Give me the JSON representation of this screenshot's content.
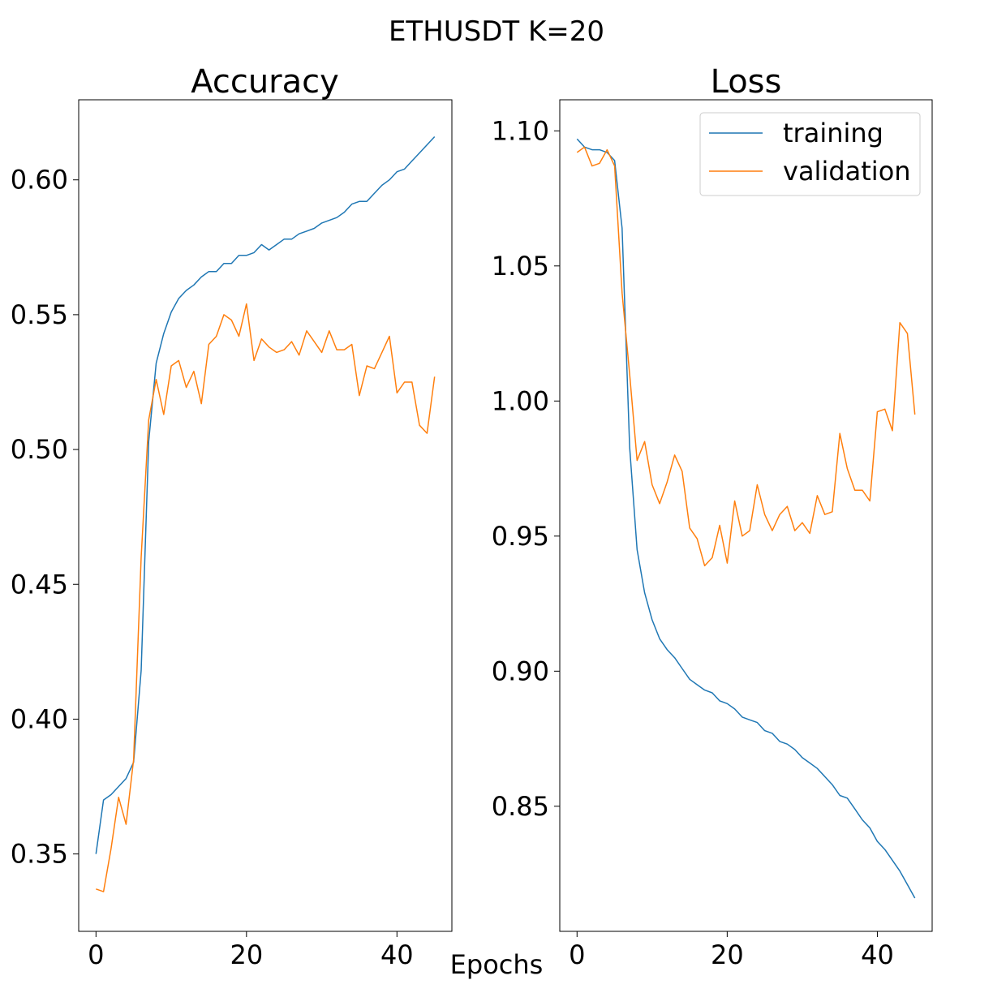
{
  "figure": {
    "suptitle": "ETHUSDT K=20",
    "xlabel": "Epochs"
  },
  "colors": {
    "training": "#1f77b4",
    "validation": "#ff7f0e"
  },
  "chart_data": [
    {
      "type": "line",
      "title": "Accuracy",
      "xlabel": "",
      "ylabel": "",
      "xlim": [
        -2.3,
        47.3
      ],
      "ylim": [
        0.3213,
        0.6297
      ],
      "xticks": [
        0,
        20,
        40
      ],
      "xtick_labels": [
        "0",
        "20",
        "40"
      ],
      "yticks": [
        0.35,
        0.4,
        0.45,
        0.5,
        0.55,
        0.6
      ],
      "ytick_labels": [
        "0.35",
        "0.40",
        "0.45",
        "0.50",
        "0.55",
        "0.60"
      ],
      "grid": false,
      "legend": null,
      "series": [
        {
          "name": "training",
          "x": [
            0,
            1,
            2,
            3,
            4,
            5,
            6,
            7,
            8,
            9,
            10,
            11,
            12,
            13,
            14,
            15,
            16,
            17,
            18,
            19,
            20,
            21,
            22,
            23,
            24,
            25,
            26,
            27,
            28,
            29,
            30,
            31,
            32,
            33,
            34,
            35,
            36,
            37,
            38,
            39,
            40,
            41,
            42,
            43,
            44,
            45
          ],
          "y": [
            0.35,
            0.37,
            0.372,
            0.375,
            0.378,
            0.384,
            0.418,
            0.503,
            0.532,
            0.543,
            0.551,
            0.556,
            0.559,
            0.561,
            0.564,
            0.566,
            0.566,
            0.569,
            0.569,
            0.572,
            0.572,
            0.573,
            0.576,
            0.574,
            0.576,
            0.578,
            0.578,
            0.58,
            0.581,
            0.582,
            0.584,
            0.585,
            0.586,
            0.588,
            0.591,
            0.592,
            0.592,
            0.595,
            0.598,
            0.6,
            0.603,
            0.604,
            0.607,
            0.61,
            0.613,
            0.616
          ]
        },
        {
          "name": "validation",
          "x": [
            0,
            1,
            2,
            3,
            4,
            5,
            6,
            7,
            8,
            9,
            10,
            11,
            12,
            13,
            14,
            15,
            16,
            17,
            18,
            19,
            20,
            21,
            22,
            23,
            24,
            25,
            26,
            27,
            28,
            29,
            30,
            31,
            32,
            33,
            34,
            35,
            36,
            37,
            38,
            39,
            40,
            41,
            42,
            43,
            44,
            45
          ],
          "y": [
            0.337,
            0.336,
            0.352,
            0.371,
            0.361,
            0.385,
            0.46,
            0.511,
            0.526,
            0.513,
            0.531,
            0.533,
            0.523,
            0.529,
            0.517,
            0.539,
            0.542,
            0.55,
            0.548,
            0.542,
            0.554,
            0.533,
            0.541,
            0.538,
            0.536,
            0.537,
            0.54,
            0.535,
            0.544,
            0.54,
            0.536,
            0.544,
            0.537,
            0.537,
            0.539,
            0.52,
            0.531,
            0.53,
            0.536,
            0.542,
            0.521,
            0.525,
            0.525,
            0.509,
            0.506,
            0.527
          ]
        }
      ]
    },
    {
      "type": "line",
      "title": "Loss",
      "xlabel": "",
      "ylabel": "",
      "xlim": [
        -2.3,
        47.3
      ],
      "ylim": [
        0.8037,
        1.1115
      ],
      "xticks": [
        0,
        20,
        40
      ],
      "xtick_labels": [
        "0",
        "20",
        "40"
      ],
      "yticks": [
        0.85,
        0.9,
        0.95,
        1.0,
        1.05,
        1.1
      ],
      "ytick_labels": [
        "0.85",
        "0.90",
        "0.95",
        "1.00",
        "1.05",
        "1.10"
      ],
      "grid": false,
      "legend": "upper right",
      "legend_entries": [
        "training",
        "validation"
      ],
      "series": [
        {
          "name": "training",
          "x": [
            0,
            1,
            2,
            3,
            4,
            5,
            6,
            7,
            8,
            9,
            10,
            11,
            12,
            13,
            14,
            15,
            16,
            17,
            18,
            19,
            20,
            21,
            22,
            23,
            24,
            25,
            26,
            27,
            28,
            29,
            30,
            31,
            32,
            33,
            34,
            35,
            36,
            37,
            38,
            39,
            40,
            41,
            42,
            43,
            44,
            45
          ],
          "y": [
            1.097,
            1.094,
            1.093,
            1.093,
            1.092,
            1.089,
            1.064,
            0.983,
            0.945,
            0.929,
            0.919,
            0.912,
            0.908,
            0.905,
            0.901,
            0.897,
            0.895,
            0.893,
            0.892,
            0.889,
            0.888,
            0.886,
            0.883,
            0.882,
            0.881,
            0.878,
            0.877,
            0.874,
            0.873,
            0.871,
            0.868,
            0.866,
            0.864,
            0.861,
            0.858,
            0.854,
            0.853,
            0.849,
            0.845,
            0.842,
            0.837,
            0.834,
            0.83,
            0.826,
            0.821,
            0.816
          ]
        },
        {
          "name": "validation",
          "x": [
            0,
            1,
            2,
            3,
            4,
            5,
            6,
            7,
            8,
            9,
            10,
            11,
            12,
            13,
            14,
            15,
            16,
            17,
            18,
            19,
            20,
            21,
            22,
            23,
            24,
            25,
            26,
            27,
            28,
            29,
            30,
            31,
            32,
            33,
            34,
            35,
            36,
            37,
            38,
            39,
            40,
            41,
            42,
            43,
            44,
            45
          ],
          "y": [
            1.092,
            1.094,
            1.087,
            1.088,
            1.093,
            1.087,
            1.04,
            1.01,
            0.978,
            0.985,
            0.969,
            0.962,
            0.97,
            0.98,
            0.974,
            0.953,
            0.949,
            0.939,
            0.942,
            0.954,
            0.94,
            0.963,
            0.95,
            0.952,
            0.969,
            0.958,
            0.952,
            0.958,
            0.961,
            0.952,
            0.955,
            0.951,
            0.965,
            0.958,
            0.959,
            0.988,
            0.975,
            0.967,
            0.967,
            0.963,
            0.996,
            0.997,
            0.989,
            1.029,
            1.025,
            0.995
          ]
        }
      ]
    }
  ]
}
